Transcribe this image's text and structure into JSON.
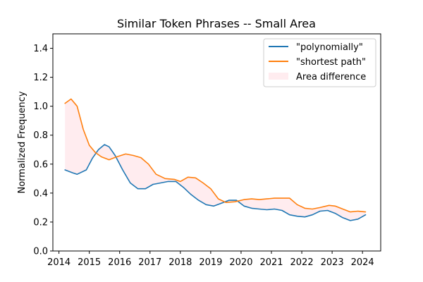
{
  "chart_data": {
    "type": "line",
    "title": "Similar Token Phrases -- Small Area",
    "xlabel": "",
    "ylabel": "Normalized Frequency",
    "xlim": [
      2013.8,
      2024.6
    ],
    "ylim": [
      0.0,
      1.5
    ],
    "x_ticks": [
      2014,
      2015,
      2016,
      2017,
      2018,
      2019,
      2020,
      2021,
      2022,
      2023,
      2024
    ],
    "y_ticks": [
      "0.0",
      "0.2",
      "0.4",
      "0.6",
      "0.8",
      "1.0",
      "1.2",
      "1.4"
    ],
    "grid": false,
    "legend_position": "top-right",
    "series": [
      {
        "name": "\"polynomially\"",
        "color": "#1f77b4",
        "x": [
          2014.2,
          2014.45,
          2014.6,
          2014.9,
          2015.1,
          2015.3,
          2015.5,
          2015.65,
          2015.85,
          2016.1,
          2016.35,
          2016.6,
          2016.85,
          2017.1,
          2017.35,
          2017.6,
          2017.85,
          2018.1,
          2018.35,
          2018.6,
          2018.85,
          2019.1,
          2019.35,
          2019.6,
          2019.85,
          2020.1,
          2020.35,
          2020.6,
          2020.85,
          2021.1,
          2021.35,
          2021.6,
          2021.85,
          2022.1,
          2022.35,
          2022.6,
          2022.85,
          2023.1,
          2023.35,
          2023.6,
          2023.85,
          2024.1
        ],
        "y": [
          0.56,
          0.54,
          0.53,
          0.56,
          0.64,
          0.7,
          0.735,
          0.72,
          0.66,
          0.56,
          0.47,
          0.43,
          0.43,
          0.46,
          0.47,
          0.48,
          0.48,
          0.44,
          0.39,
          0.35,
          0.32,
          0.31,
          0.33,
          0.35,
          0.35,
          0.31,
          0.295,
          0.29,
          0.285,
          0.29,
          0.28,
          0.25,
          0.24,
          0.235,
          0.25,
          0.275,
          0.28,
          0.26,
          0.23,
          0.21,
          0.22,
          0.25
        ]
      },
      {
        "name": "\"shortest path\"",
        "color": "#ff7f0e",
        "x": [
          2014.2,
          2014.4,
          2014.6,
          2014.8,
          2015.0,
          2015.2,
          2015.4,
          2015.65,
          2015.9,
          2016.2,
          2016.45,
          2016.7,
          2016.95,
          2017.2,
          2017.5,
          2017.8,
          2018.0,
          2018.25,
          2018.5,
          2018.75,
          2019.0,
          2019.25,
          2019.5,
          2019.8,
          2020.1,
          2020.35,
          2020.6,
          2020.85,
          2021.1,
          2021.4,
          2021.6,
          2021.85,
          2022.1,
          2022.35,
          2022.6,
          2022.9,
          2023.1,
          2023.35,
          2023.6,
          2023.85,
          2024.1
        ],
        "y": [
          1.02,
          1.05,
          1.0,
          0.84,
          0.73,
          0.68,
          0.65,
          0.63,
          0.65,
          0.67,
          0.66,
          0.645,
          0.6,
          0.53,
          0.5,
          0.495,
          0.48,
          0.51,
          0.505,
          0.47,
          0.43,
          0.36,
          0.335,
          0.34,
          0.355,
          0.36,
          0.355,
          0.36,
          0.365,
          0.365,
          0.365,
          0.32,
          0.295,
          0.29,
          0.3,
          0.315,
          0.31,
          0.29,
          0.27,
          0.275,
          0.27
        ]
      }
    ],
    "fill_between": {
      "name": "Area difference",
      "color": "#ffc0cb",
      "alpha": 0.3
    }
  }
}
